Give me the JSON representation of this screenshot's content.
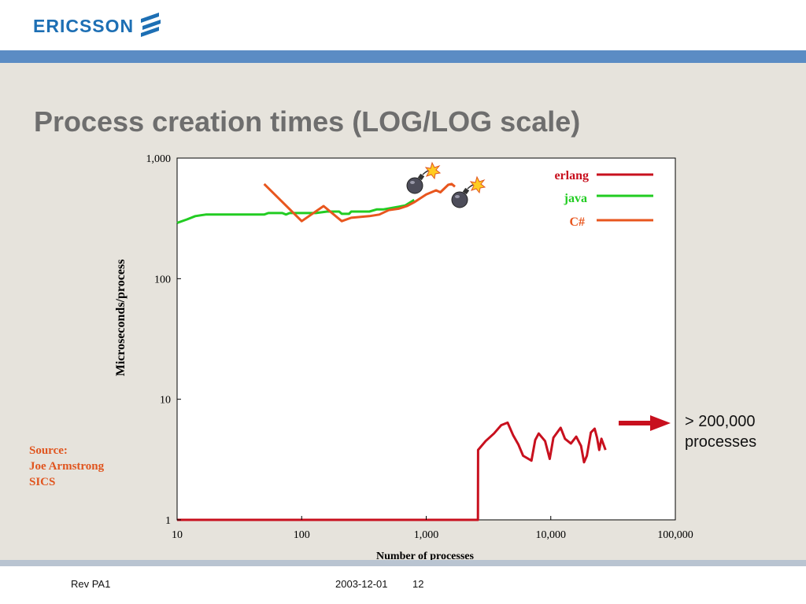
{
  "header": {
    "logo_text": "ERICSSON",
    "logo_icon": "ericsson-logo-icon",
    "brand_color": "#1d6fb4",
    "band_color": "#5b8cc4"
  },
  "slide": {
    "title": "Process creation times (LOG/LOG scale)"
  },
  "source": {
    "line1": "Source:",
    "line2": "Joe Armstrong",
    "line3": "SICS",
    "color": "#e0551f"
  },
  "callout": {
    "line1": "> 200,000",
    "line2": "processes",
    "arrow_icon": "right-arrow-icon",
    "arrow_color": "#c8101e"
  },
  "footer": {
    "rev": "Rev PA1",
    "date": "2003-12-01",
    "page": "12"
  },
  "chart_data": {
    "type": "line",
    "xlabel": "Number of processes",
    "ylabel": "Microseconds/process",
    "xscale": "log",
    "yscale": "log",
    "xlim": [
      10,
      100000
    ],
    "ylim": [
      1,
      1000
    ],
    "xticks": [
      10,
      100,
      1000,
      10000,
      100000
    ],
    "xtick_labels": [
      "10",
      "100",
      "1,000",
      "10,000",
      "100,000"
    ],
    "yticks": [
      1,
      10,
      100,
      1000
    ],
    "ytick_labels": [
      "1",
      "10",
      "100",
      "1,000"
    ],
    "legend_position": "top-right",
    "annotations": [
      "bomb-icon",
      "bomb-icon"
    ],
    "series": [
      {
        "name": "erlang",
        "color": "#c8101e",
        "points": [
          [
            10,
            1
          ],
          [
            2600,
            1
          ],
          [
            2610,
            3.8
          ],
          [
            3000,
            4.5
          ],
          [
            3500,
            5.2
          ],
          [
            4000,
            6.1
          ],
          [
            4500,
            6.4
          ],
          [
            5000,
            5.0
          ],
          [
            5500,
            4.2
          ],
          [
            6000,
            3.4
          ],
          [
            7000,
            3.1
          ],
          [
            7500,
            4.6
          ],
          [
            8000,
            5.2
          ],
          [
            9000,
            4.5
          ],
          [
            9800,
            3.2
          ],
          [
            10500,
            4.8
          ],
          [
            12000,
            5.8
          ],
          [
            13000,
            4.7
          ],
          [
            14500,
            4.3
          ],
          [
            16000,
            4.9
          ],
          [
            17500,
            4.1
          ],
          [
            18500,
            3.0
          ],
          [
            19500,
            3.4
          ],
          [
            21000,
            5.3
          ],
          [
            22500,
            5.7
          ],
          [
            23500,
            4.8
          ],
          [
            24500,
            3.8
          ],
          [
            25500,
            4.7
          ],
          [
            27500,
            3.8
          ]
        ]
      },
      {
        "name": "java",
        "color": "#22cc22",
        "points": [
          [
            10,
            290
          ],
          [
            12,
            310
          ],
          [
            14,
            330
          ],
          [
            17,
            340
          ],
          [
            50,
            340
          ],
          [
            54,
            350
          ],
          [
            70,
            350
          ],
          [
            75,
            340
          ],
          [
            80,
            350
          ],
          [
            130,
            350
          ],
          [
            160,
            360
          ],
          [
            200,
            360
          ],
          [
            210,
            345
          ],
          [
            240,
            345
          ],
          [
            250,
            360
          ],
          [
            350,
            360
          ],
          [
            400,
            375
          ],
          [
            450,
            375
          ],
          [
            520,
            385
          ],
          [
            600,
            395
          ],
          [
            680,
            405
          ],
          [
            800,
            450
          ]
        ]
      },
      {
        "name": "C#",
        "color": "#e8561e",
        "points": [
          [
            50,
            610
          ],
          [
            100,
            300
          ],
          [
            150,
            400
          ],
          [
            210,
            300
          ],
          [
            250,
            320
          ],
          [
            350,
            330
          ],
          [
            420,
            340
          ],
          [
            500,
            370
          ],
          [
            600,
            380
          ],
          [
            700,
            400
          ],
          [
            800,
            430
          ],
          [
            1000,
            500
          ],
          [
            1200,
            540
          ],
          [
            1300,
            520
          ],
          [
            1500,
            600
          ],
          [
            1600,
            610
          ],
          [
            1700,
            580
          ]
        ]
      }
    ]
  }
}
